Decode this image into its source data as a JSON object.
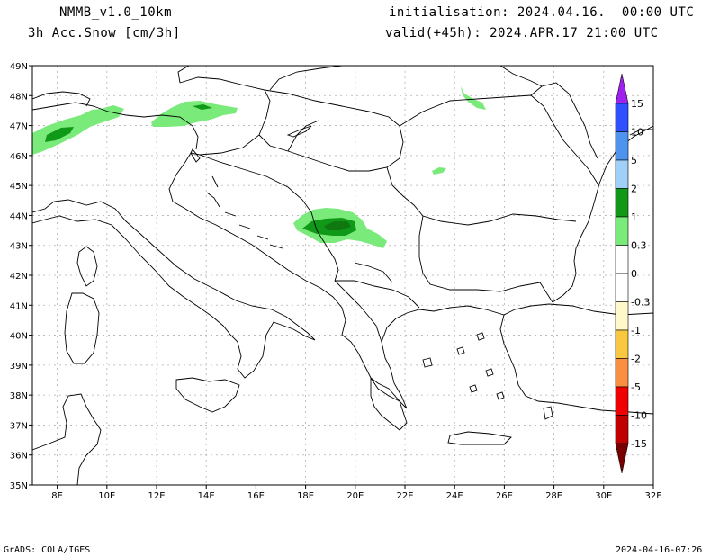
{
  "header": {
    "model": "NMMB_v1.0_10km",
    "field": "3h Acc.Snow [cm/3h]",
    "init": "initialisation: 2024.04.16.  00:00 UTC",
    "valid": "valid(+45h): 2024.APR.17 21:00 UTC"
  },
  "footer": {
    "credit": "GrADS: COLA/IGES",
    "timestamp": "2024-04-16-07:26"
  },
  "map": {
    "lon_range": [
      7,
      32
    ],
    "lat_range": [
      35,
      49
    ],
    "x_ticks": [
      "8E",
      "10E",
      "12E",
      "14E",
      "16E",
      "18E",
      "20E",
      "22E",
      "24E",
      "26E",
      "28E",
      "30E",
      "32E"
    ],
    "y_ticks": [
      "49N",
      "48N",
      "47N",
      "46N",
      "45N",
      "44N",
      "43N",
      "42N",
      "41N",
      "40N",
      "39N",
      "38N",
      "37N",
      "36N",
      "35N"
    ]
  },
  "colorbar": {
    "labels": [
      "15",
      "10",
      "5",
      "2",
      "1",
      "0.3",
      "0",
      "-0.3",
      "-1",
      "-2",
      "-5",
      "-10",
      "-15"
    ],
    "colors": {
      "cap_top": "#a020f0",
      "c15": "#3050ff",
      "c10": "#4e94ef",
      "c5": "#a0d0f8",
      "c2": "#109818",
      "c1": "#7aea7a",
      "c03": "#ffffff",
      "n03": "#fff8c8",
      "n1": "#f8c840",
      "n2": "#f89040",
      "n5": "#f00000",
      "n10": "#c00000",
      "cap_bottom": "#780000"
    }
  },
  "snow_colors": {
    "light": "#7aea7a",
    "mid": "#109818",
    "dark": "#107810"
  }
}
